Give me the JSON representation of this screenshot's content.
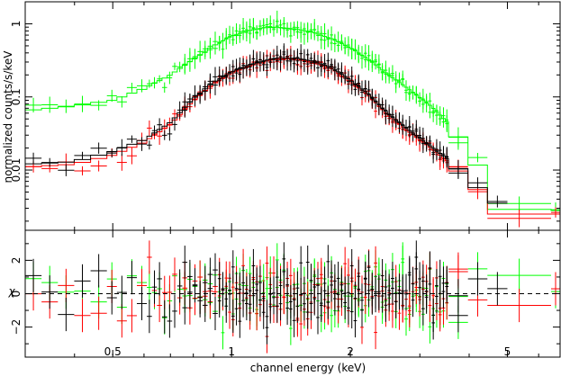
{
  "chart_data": [
    {
      "type": "scatter",
      "panel": "spectrum",
      "ylabel": "normalized counts/s/keV",
      "xlabel": "",
      "x_scale": "log",
      "y_scale": "log",
      "xlim": [
        0.3,
        6.8
      ],
      "ylim": [
        0.0015,
        2.0
      ],
      "y_ticks": [
        {
          "value": 1,
          "label": "1"
        },
        {
          "value": 0.1,
          "label": "0.1"
        },
        {
          "value": 0.01,
          "label": "0.01"
        }
      ],
      "series": [
        {
          "color": "#00ff00",
          "kind": "data+model",
          "model": [
            [
              0.3,
              0.065
            ],
            [
              0.4,
              0.075
            ],
            [
              0.5,
              0.09
            ],
            [
              0.6,
              0.13
            ],
            [
              0.7,
              0.2
            ],
            [
              0.8,
              0.33
            ],
            [
              0.9,
              0.5
            ],
            [
              1.0,
              0.68
            ],
            [
              1.1,
              0.8
            ],
            [
              1.2,
              0.88
            ],
            [
              1.3,
              0.9
            ],
            [
              1.45,
              0.85
            ],
            [
              1.6,
              0.77
            ],
            [
              1.8,
              0.62
            ],
            [
              2.0,
              0.47
            ],
            [
              2.2,
              0.34
            ],
            [
              2.5,
              0.2
            ],
            [
              2.8,
              0.13
            ],
            [
              3.2,
              0.075
            ],
            [
              3.6,
              0.04
            ],
            [
              4.0,
              0.017
            ],
            [
              4.5,
              0.007
            ],
            [
              5.0,
              0.0032
            ],
            [
              5.5,
              0.0028
            ],
            [
              6.8,
              0.0028
            ]
          ]
        },
        {
          "color": "#ff0000",
          "kind": "data+model",
          "model": [
            [
              0.3,
              0.011
            ],
            [
              0.4,
              0.012
            ],
            [
              0.5,
              0.016
            ],
            [
              0.6,
              0.024
            ],
            [
              0.7,
              0.042
            ],
            [
              0.8,
              0.09
            ],
            [
              0.9,
              0.15
            ],
            [
              1.0,
              0.21
            ],
            [
              1.1,
              0.26
            ],
            [
              1.2,
              0.3
            ],
            [
              1.3,
              0.33
            ],
            [
              1.45,
              0.33
            ],
            [
              1.6,
              0.3
            ],
            [
              1.8,
              0.24
            ],
            [
              2.0,
              0.16
            ],
            [
              2.2,
              0.11
            ],
            [
              2.5,
              0.055
            ],
            [
              2.8,
              0.034
            ],
            [
              3.2,
              0.02
            ],
            [
              3.6,
              0.012
            ],
            [
              4.0,
              0.007
            ],
            [
              4.5,
              0.0038
            ],
            [
              5.0,
              0.0025
            ],
            [
              5.5,
              0.0025
            ],
            [
              6.8,
              0.0025
            ]
          ]
        },
        {
          "color": "#000000",
          "kind": "data+model",
          "model": [
            [
              0.3,
              0.012
            ],
            [
              0.4,
              0.013
            ],
            [
              0.5,
              0.018
            ],
            [
              0.6,
              0.026
            ],
            [
              0.7,
              0.045
            ],
            [
              0.8,
              0.095
            ],
            [
              0.9,
              0.16
            ],
            [
              1.0,
              0.22
            ],
            [
              1.1,
              0.27
            ],
            [
              1.2,
              0.31
            ],
            [
              1.3,
              0.34
            ],
            [
              1.45,
              0.34
            ],
            [
              1.6,
              0.31
            ],
            [
              1.8,
              0.25
            ],
            [
              2.0,
              0.17
            ],
            [
              2.2,
              0.115
            ],
            [
              2.5,
              0.058
            ],
            [
              2.8,
              0.036
            ],
            [
              3.2,
              0.021
            ],
            [
              3.6,
              0.013
            ],
            [
              4.0,
              0.0075
            ],
            [
              4.5,
              0.004
            ],
            [
              5.0,
              0.003
            ]
          ]
        }
      ]
    },
    {
      "type": "scatter",
      "panel": "residuals",
      "ylabel": "χ",
      "xlabel": "channel energy (keV)",
      "x_scale": "log",
      "xlim": [
        0.3,
        6.8
      ],
      "ylim": [
        -3.8,
        3.8
      ],
      "y_ticks": [
        {
          "value": 2,
          "label": "2"
        },
        {
          "value": 0,
          "label": "0"
        },
        {
          "value": -2,
          "label": "−2"
        }
      ],
      "x_ticks": [
        {
          "value": 0.5,
          "label": "0.5"
        },
        {
          "value": 1,
          "label": "1"
        },
        {
          "value": 2,
          "label": "2"
        },
        {
          "value": 5,
          "label": "5"
        }
      ],
      "zero_line": "dashed",
      "series_colors": [
        "#00ff00",
        "#ff0000",
        "#000000"
      ]
    }
  ]
}
